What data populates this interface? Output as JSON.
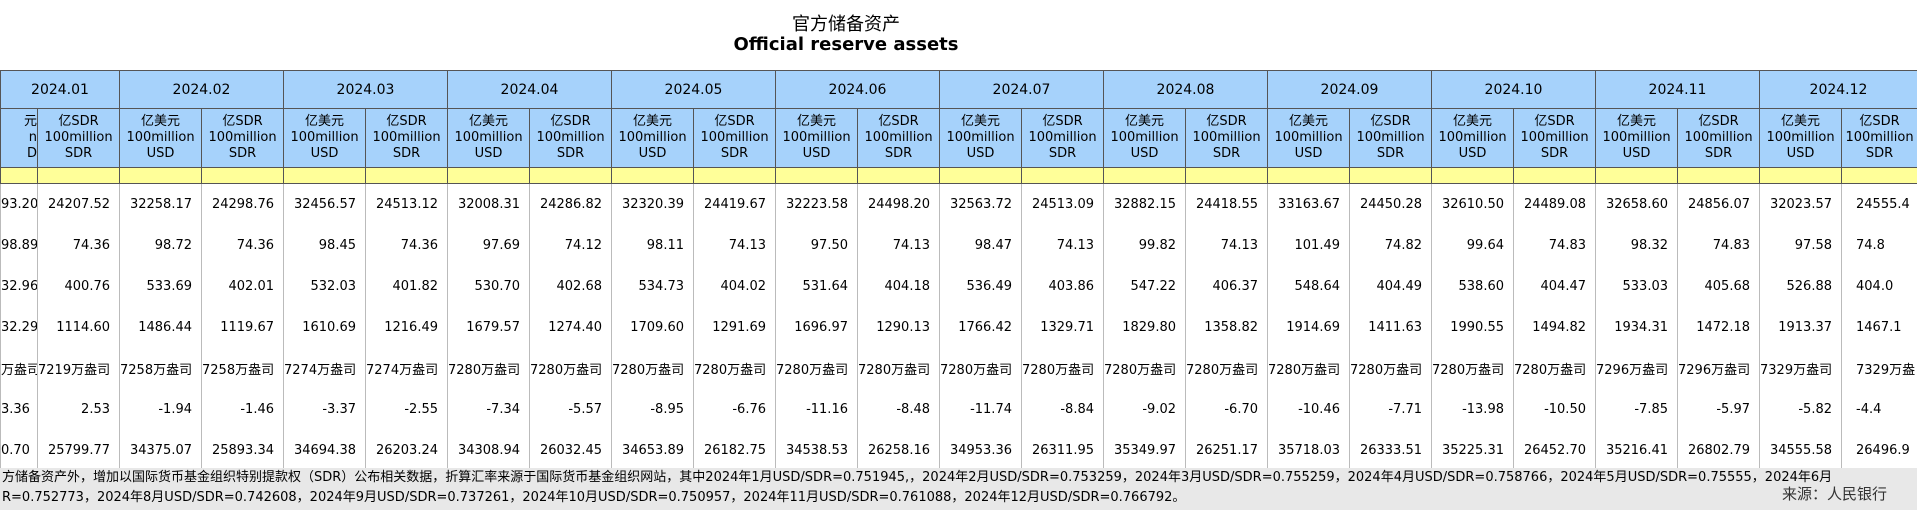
{
  "title": "官方储备资产",
  "subtitle": "Official reserve assets",
  "table": {
    "months": [
      "2024.01",
      "2024.02",
      "2024.03",
      "2024.04",
      "2024.05",
      "2024.06",
      "2024.07",
      "2024.08",
      "2024.09",
      "2024.10",
      "2024.11",
      "2024.12"
    ],
    "subheaders": [
      [
        "元",
        "n",
        "D"
      ],
      [
        "亿SDR",
        "100million",
        "SDR"
      ],
      [
        "亿美元",
        "100million",
        "USD"
      ],
      [
        "亿SDR",
        "100million",
        "SDR"
      ],
      [
        "亿美元",
        "100million",
        "USD"
      ],
      [
        "亿SDR",
        "100million",
        "SDR"
      ],
      [
        "亿美元",
        "100million",
        "USD"
      ],
      [
        "亿SDR",
        "100million",
        "SDR"
      ],
      [
        "亿美元",
        "100million",
        "USD"
      ],
      [
        "亿SDR",
        "100million",
        "SDR"
      ],
      [
        "亿美元",
        "100million",
        "USD"
      ],
      [
        "亿SDR",
        "100million",
        "SDR"
      ],
      [
        "亿美元",
        "100million",
        "USD"
      ],
      [
        "亿SDR",
        "100million",
        "SDR"
      ],
      [
        "亿美元",
        "100million",
        "USD"
      ],
      [
        "亿SDR",
        "100million",
        "SDR"
      ],
      [
        "亿美元",
        "100million",
        "USD"
      ],
      [
        "亿SDR",
        "100million",
        "SDR"
      ],
      [
        "亿美元",
        "100million",
        "USD"
      ],
      [
        "亿SDR",
        "100million",
        "SDR"
      ],
      [
        "亿美元",
        "100million",
        "USD"
      ],
      [
        "亿SDR",
        "100million",
        "SDR"
      ],
      [
        "亿美元",
        "100million",
        "USD"
      ],
      [
        "亿SDR",
        "100million",
        "SDR"
      ]
    ],
    "rows": [
      [
        "93.20",
        "24207.52",
        "32258.17",
        "24298.76",
        "32456.57",
        "24513.12",
        "32008.31",
        "24286.82",
        "32320.39",
        "24419.67",
        "32223.58",
        "24498.20",
        "32563.72",
        "24513.09",
        "32882.15",
        "24418.55",
        "33163.67",
        "24450.28",
        "32610.50",
        "24489.08",
        "32658.60",
        "24856.07",
        "32023.57",
        "24555.4"
      ],
      [
        "98.89",
        "74.36",
        "98.72",
        "74.36",
        "98.45",
        "74.36",
        "97.69",
        "74.12",
        "98.11",
        "74.13",
        "97.50",
        "74.13",
        "98.47",
        "74.13",
        "99.82",
        "74.13",
        "101.49",
        "74.82",
        "99.64",
        "74.83",
        "98.32",
        "74.83",
        "97.58",
        "74.8"
      ],
      [
        "32.96",
        "400.76",
        "533.69",
        "402.01",
        "532.03",
        "401.82",
        "530.70",
        "402.68",
        "534.73",
        "404.02",
        "531.64",
        "404.18",
        "536.49",
        "403.86",
        "547.22",
        "406.37",
        "548.64",
        "404.49",
        "538.60",
        "404.47",
        "533.03",
        "405.68",
        "526.88",
        "404.0"
      ],
      [
        "32.29",
        "1114.60",
        "1486.44",
        "1119.67",
        "1610.69",
        "1216.49",
        "1679.57",
        "1274.40",
        "1709.60",
        "1291.69",
        "1696.97",
        "1290.13",
        "1766.42",
        "1329.71",
        "1829.80",
        "1358.82",
        "1914.69",
        "1411.63",
        "1990.55",
        "1494.82",
        "1934.31",
        "1472.18",
        "1913.37",
        "1467.1"
      ],
      [
        "万盎司",
        "7219万盎司",
        "7258万盎司",
        "7258万盎司",
        "7274万盎司",
        "7274万盎司",
        "7280万盎司",
        "7280万盎司",
        "7280万盎司",
        "7280万盎司",
        "7280万盎司",
        "7280万盎司",
        "7280万盎司",
        "7280万盎司",
        "7280万盎司",
        "7280万盎司",
        "7280万盎司",
        "7280万盎司",
        "7280万盎司",
        "7280万盎司",
        "7296万盎司",
        "7296万盎司",
        "7329万盎司",
        "7329万盎"
      ],
      [
        "3.36",
        "2.53",
        "-1.94",
        "-1.46",
        "-3.37",
        "-2.55",
        "-7.34",
        "-5.57",
        "-8.95",
        "-6.76",
        "-11.16",
        "-8.48",
        "-11.74",
        "-8.84",
        "-9.02",
        "-6.70",
        "-10.46",
        "-7.71",
        "-13.98",
        "-10.50",
        "-7.85",
        "-5.97",
        "-5.82",
        "-4.4"
      ],
      [
        "0.70",
        "25799.77",
        "34375.07",
        "25893.34",
        "34694.38",
        "26203.24",
        "34308.94",
        "26032.45",
        "34653.89",
        "26182.75",
        "34538.53",
        "26258.16",
        "34953.36",
        "26311.95",
        "35349.97",
        "26251.17",
        "35718.03",
        "26333.51",
        "35225.31",
        "26452.70",
        "35216.41",
        "26802.79",
        "34555.58",
        "26496.9"
      ]
    ]
  },
  "notes": [
    "方储备资产外，增加以国际货币基金组织特别提款权（SDR）公布相关数据，折算汇率来源于国际货币基金组织网站，其中2024年1月USD/SDR=0.751945,，2024年2月USD/SDR=0.753259，2024年3月USD/SDR=0.755259，2024年4月USD/SDR=0.758766，2024年5月USD/SDR=0.75555，2024年6月",
    "R=0.752773，2024年8月USD/SDR=0.742608，2024年9月USD/SDR=0.737261，2024年10月USD/SDR=0.750957，2024年11月USD/SDR=0.761088，2024年12月USD/SDR=0.766792。"
  ],
  "source": "来源：人民银行"
}
